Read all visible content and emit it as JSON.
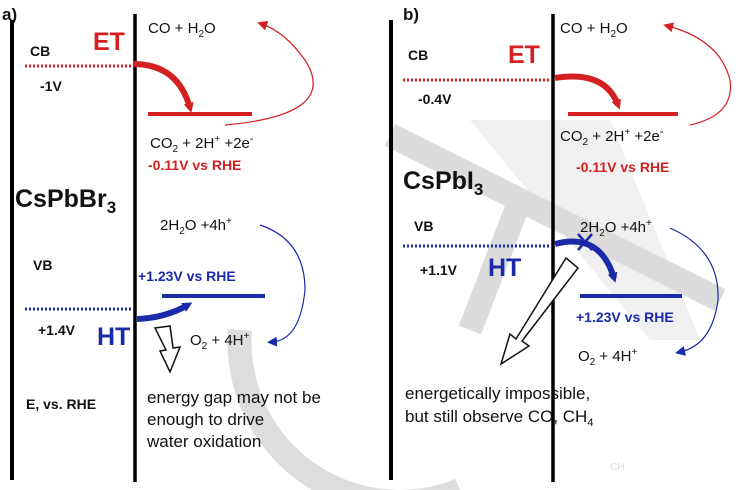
{
  "watermark": "CH",
  "colors": {
    "et_red": "#d42020",
    "ht_blue": "#1a2aa8",
    "text": "#111111",
    "watermark": "#d6d6d6"
  },
  "panel_a": {
    "tag": "a)",
    "material_base": "CsPbBr",
    "material_sub": "3",
    "cb_label": "CB",
    "cb_potential": "-1V",
    "vb_label": "VB",
    "vb_potential": "+1.4V",
    "axis_label": "E, vs. RHE",
    "et_label": "ET",
    "ht_label": "HT",
    "product_top": {
      "a": "CO + H",
      "sub": "2",
      "b": "O"
    },
    "reactant_co2": {
      "a": "CO",
      "sub": "2",
      "b": " + 2H",
      "sup1": "+",
      "c": " +2e",
      "sup2": "-"
    },
    "co2_potential": "-0.11V vs RHE",
    "water": {
      "a": "2H",
      "sub": "2",
      "b": "O +4h",
      "sup": "+"
    },
    "water_potential": "+1.23V vs RHE",
    "o2": {
      "a": "O",
      "sub": "2",
      "b": " + 4H",
      "sup": "+"
    },
    "note": [
      "energy gap may not be",
      "enough to drive",
      "water oxidation"
    ]
  },
  "panel_b": {
    "tag": "b)",
    "material_base": "CsPbI",
    "material_sub": "3",
    "cb_label": "CB",
    "cb_potential": "-0.4V",
    "vb_label": "VB",
    "vb_potential": "+1.1V",
    "et_label": "ET",
    "ht_label": "HT",
    "product_top": {
      "a": "CO + H",
      "sub": "2",
      "b": "O"
    },
    "reactant_co2": {
      "a": "CO",
      "sub": "2",
      "b": " + 2H",
      "sup1": "+",
      "c": " +2e",
      "sup2": "-"
    },
    "co2_potential": "-0.11V vs RHE",
    "water": {
      "a": "2H",
      "sub": "2",
      "b": "O +4h",
      "sup": "+"
    },
    "water_potential": "+1.23V vs RHE",
    "o2": {
      "a": "O",
      "sub": "2",
      "b": " + 4H",
      "sup": "+"
    },
    "note": [
      "energetically impossible,",
      "but still observe CO, CH"
    ],
    "note_sub": "4"
  }
}
